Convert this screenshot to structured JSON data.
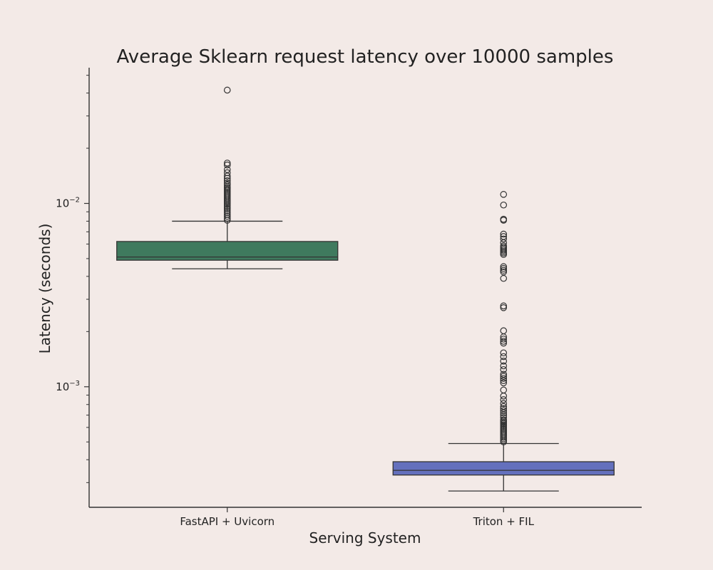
{
  "chart_data": {
    "type": "box",
    "title": "Average Sklearn request latency over 10000 samples",
    "xlabel": "Serving System",
    "ylabel": "Latency (seconds)",
    "yscale": "log",
    "ylim": [
      0.00022,
      0.055
    ],
    "y_ticks": [
      {
        "value": 0.001,
        "base": "10",
        "exp": "−3"
      },
      {
        "value": 0.01,
        "base": "10",
        "exp": "−2"
      }
    ],
    "categories": [
      "FastAPI + Uvicorn",
      "Triton + FIL"
    ],
    "series": [
      {
        "category": "FastAPI + Uvicorn",
        "color": "#3f7a5e",
        "whisker_low": 0.0044,
        "q1": 0.0049,
        "median": 0.0051,
        "q3": 0.0062,
        "whisker_high": 0.008,
        "outliers": [
          0.0081,
          0.0083,
          0.0085,
          0.0087,
          0.0089,
          0.0091,
          0.0093,
          0.0095,
          0.0097,
          0.0099,
          0.0101,
          0.0103,
          0.0105,
          0.0107,
          0.0109,
          0.0111,
          0.0113,
          0.0115,
          0.0117,
          0.0119,
          0.0121,
          0.0123,
          0.0126,
          0.0129,
          0.0133,
          0.0137,
          0.0141,
          0.0147,
          0.0153,
          0.0162,
          0.0166,
          0.0415
        ]
      },
      {
        "category": "Triton + FIL",
        "color": "#6470bd",
        "whisker_low": 0.00027,
        "q1": 0.00033,
        "median": 0.00035,
        "q3": 0.00039,
        "whisker_high": 0.00049,
        "outliers": [
          0.0005,
          0.00051,
          0.00052,
          0.00053,
          0.00054,
          0.00055,
          0.00056,
          0.00057,
          0.00058,
          0.00059,
          0.0006,
          0.00061,
          0.00062,
          0.00063,
          0.00064,
          0.00065,
          0.00066,
          0.00068,
          0.0007,
          0.00072,
          0.00074,
          0.00076,
          0.00078,
          0.00081,
          0.00085,
          0.00089,
          0.00096,
          0.00105,
          0.00108,
          0.00111,
          0.00114,
          0.00117,
          0.00124,
          0.0013,
          0.00138,
          0.00146,
          0.00153,
          0.00173,
          0.00177,
          0.00182,
          0.00187,
          0.00202,
          0.0027,
          0.00276,
          0.0039,
          0.00423,
          0.00432,
          0.00442,
          0.00452,
          0.00527,
          0.00537,
          0.00547,
          0.00557,
          0.00567,
          0.00577,
          0.00587,
          0.0061,
          0.0064,
          0.0066,
          0.0068,
          0.0081,
          0.0082,
          0.0098,
          0.0112
        ]
      }
    ]
  }
}
